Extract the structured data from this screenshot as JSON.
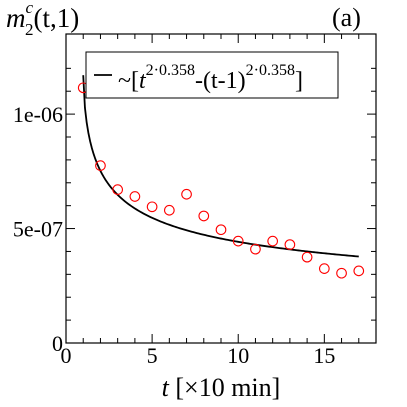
{
  "chart_data": {
    "type": "scatter",
    "panel_label": "(a)",
    "ylabel": {
      "base": "m",
      "sub": "2",
      "sup": "c",
      "args": "(t,1)"
    },
    "xlabel": {
      "var": "t",
      "rest": " [×10 min]"
    },
    "xlim": [
      0,
      18
    ],
    "ylim": [
      0,
      1.35e-06
    ],
    "x_ticks": [
      {
        "value": 0,
        "label": "0"
      },
      {
        "value": 5,
        "label": "5"
      },
      {
        "value": 10,
        "label": "10"
      },
      {
        "value": 15,
        "label": "15"
      }
    ],
    "y_ticks": [
      {
        "value": 0,
        "label": "0"
      },
      {
        "value": 5e-07,
        "label": "5e-07"
      },
      {
        "value": 1e-06,
        "label": "1e-06"
      }
    ],
    "legend": {
      "prefix": "~[",
      "t1": "t",
      "exp1": "2·0.358",
      "mid": "-(t-1)",
      "exp2": "2·0.358",
      "suffix": "]",
      "placement": "top"
    },
    "series": [
      {
        "marker": "open-circle",
        "color": "#ff0000",
        "x": [
          1,
          2,
          3,
          4,
          5,
          6,
          7,
          8,
          9,
          10,
          11,
          12,
          13,
          14,
          15,
          16,
          17
        ],
        "y": [
          1.115e-06,
          7.75e-07,
          6.7e-07,
          6.4e-07,
          5.95e-07,
          5.8e-07,
          6.5e-07,
          5.55e-07,
          4.95e-07,
          4.45e-07,
          4.1e-07,
          4.45e-07,
          4.3e-07,
          3.75e-07,
          3.25e-07,
          3.05e-07,
          3.15e-07
        ]
      },
      {
        "line": "solid",
        "color": "#000000",
        "fit_exponent": 0.716,
        "amplitude": 1.17e-06,
        "x_range": [
          1,
          17
        ]
      }
    ]
  }
}
